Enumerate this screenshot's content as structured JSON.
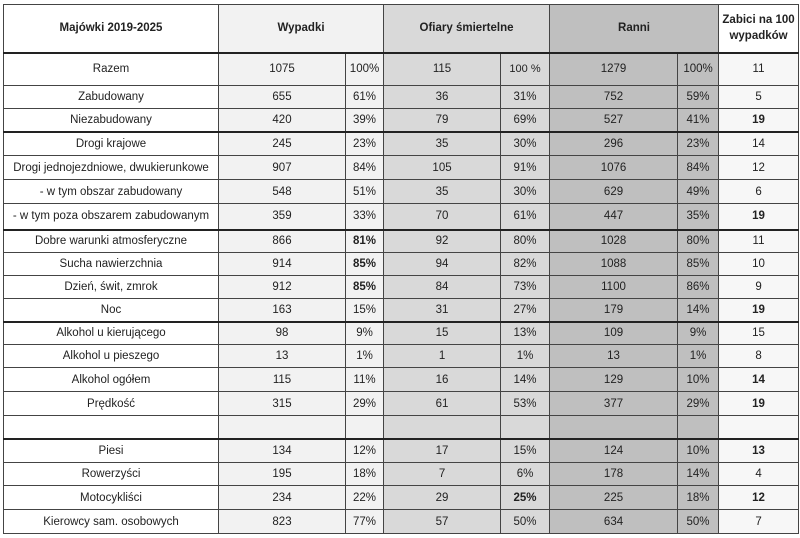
{
  "header": [
    "Majówki 2019-2025",
    "Wypadki",
    "Ofiary śmiertelne",
    "Ranni",
    "Zabici na 100 wypadków"
  ],
  "colors": {
    "wypadki_bg": "#f2f2f2",
    "ofiary_bg": "#d9d9d9",
    "ranni_bg": "#bfbfbf"
  },
  "rows": [
    {
      "cells": [
        "Razem",
        "1075",
        "100%",
        "115",
        "100 %",
        "1279",
        "100%",
        "11"
      ],
      "bold": []
    },
    {
      "cells": [
        "Zabudowany",
        "655",
        "61%",
        "36",
        "31%",
        "752",
        "59%",
        "5"
      ],
      "bold": []
    },
    {
      "cells": [
        "Niezabudowany",
        "420",
        "39%",
        "79",
        "69%",
        "527",
        "41%",
        "19"
      ],
      "bold": [
        7
      ]
    },
    {
      "cells": [
        "Drogi krajowe",
        "245",
        "23%",
        "35",
        "30%",
        "296",
        "23%",
        "14"
      ],
      "bold": []
    },
    {
      "cells": [
        "Drogi jednojezdniowe, dwukierunkowe",
        "907",
        "84%",
        "105",
        "91%",
        "1076",
        "84%",
        "12"
      ],
      "bold": []
    },
    {
      "cells": [
        "- w tym obszar zabudowany",
        "548",
        "51%",
        "35",
        "30%",
        "629",
        "49%",
        "6"
      ],
      "bold": []
    },
    {
      "cells": [
        "- w tym poza obszarem zabudowanym",
        "359",
        "33%",
        "70",
        "61%",
        "447",
        "35%",
        "19"
      ],
      "bold": [
        7
      ]
    },
    {
      "cells": [
        "Dobre warunki atmosferyczne",
        "866",
        "81%",
        "92",
        "80%",
        "1028",
        "80%",
        "11"
      ],
      "bold": [
        2
      ]
    },
    {
      "cells": [
        "Sucha nawierzchnia",
        "914",
        "85%",
        "94",
        "82%",
        "1088",
        "85%",
        "10"
      ],
      "bold": [
        2
      ]
    },
    {
      "cells": [
        "Dzień, świt, zmrok",
        "912",
        "85%",
        "84",
        "73%",
        "1100",
        "86%",
        "9"
      ],
      "bold": [
        2
      ]
    },
    {
      "cells": [
        "Noc",
        "163",
        "15%",
        "31",
        "27%",
        "179",
        "14%",
        "19"
      ],
      "bold": [
        7
      ]
    },
    {
      "cells": [
        "Alkohol u kierującego",
        "98",
        "9%",
        "15",
        "13%",
        "109",
        "9%",
        "15"
      ],
      "bold": []
    },
    {
      "cells": [
        "Alkohol u pieszego",
        "13",
        "1%",
        "1",
        "1%",
        "13",
        "1%",
        "8"
      ],
      "bold": []
    },
    {
      "cells": [
        "Alkohol ogółem",
        "115",
        "11%",
        "16",
        "14%",
        "129",
        "10%",
        "14"
      ],
      "bold": [
        7
      ]
    },
    {
      "cells": [
        "Prędkość",
        "315",
        "29%",
        "61",
        "53%",
        "377",
        "29%",
        "19"
      ],
      "bold": [
        7
      ]
    },
    {
      "cells": [
        "",
        "",
        "",
        "",
        "",
        "",
        "",
        ""
      ],
      "bold": []
    },
    {
      "cells": [
        "Piesi",
        "134",
        "12%",
        "17",
        "15%",
        "124",
        "10%",
        "13"
      ],
      "bold": [
        7
      ]
    },
    {
      "cells": [
        "Rowerzyści",
        "195",
        "18%",
        "7",
        "6%",
        "178",
        "14%",
        "4"
      ],
      "bold": []
    },
    {
      "cells": [
        "Motocykliści",
        "234",
        "22%",
        "29",
        "25%",
        "225",
        "18%",
        "12"
      ],
      "bold": [
        4,
        7
      ]
    },
    {
      "cells": [
        "Kierowcy sam. osobowych",
        "823",
        "77%",
        "57",
        "50%",
        "634",
        "50%",
        "7"
      ],
      "bold": []
    }
  ]
}
